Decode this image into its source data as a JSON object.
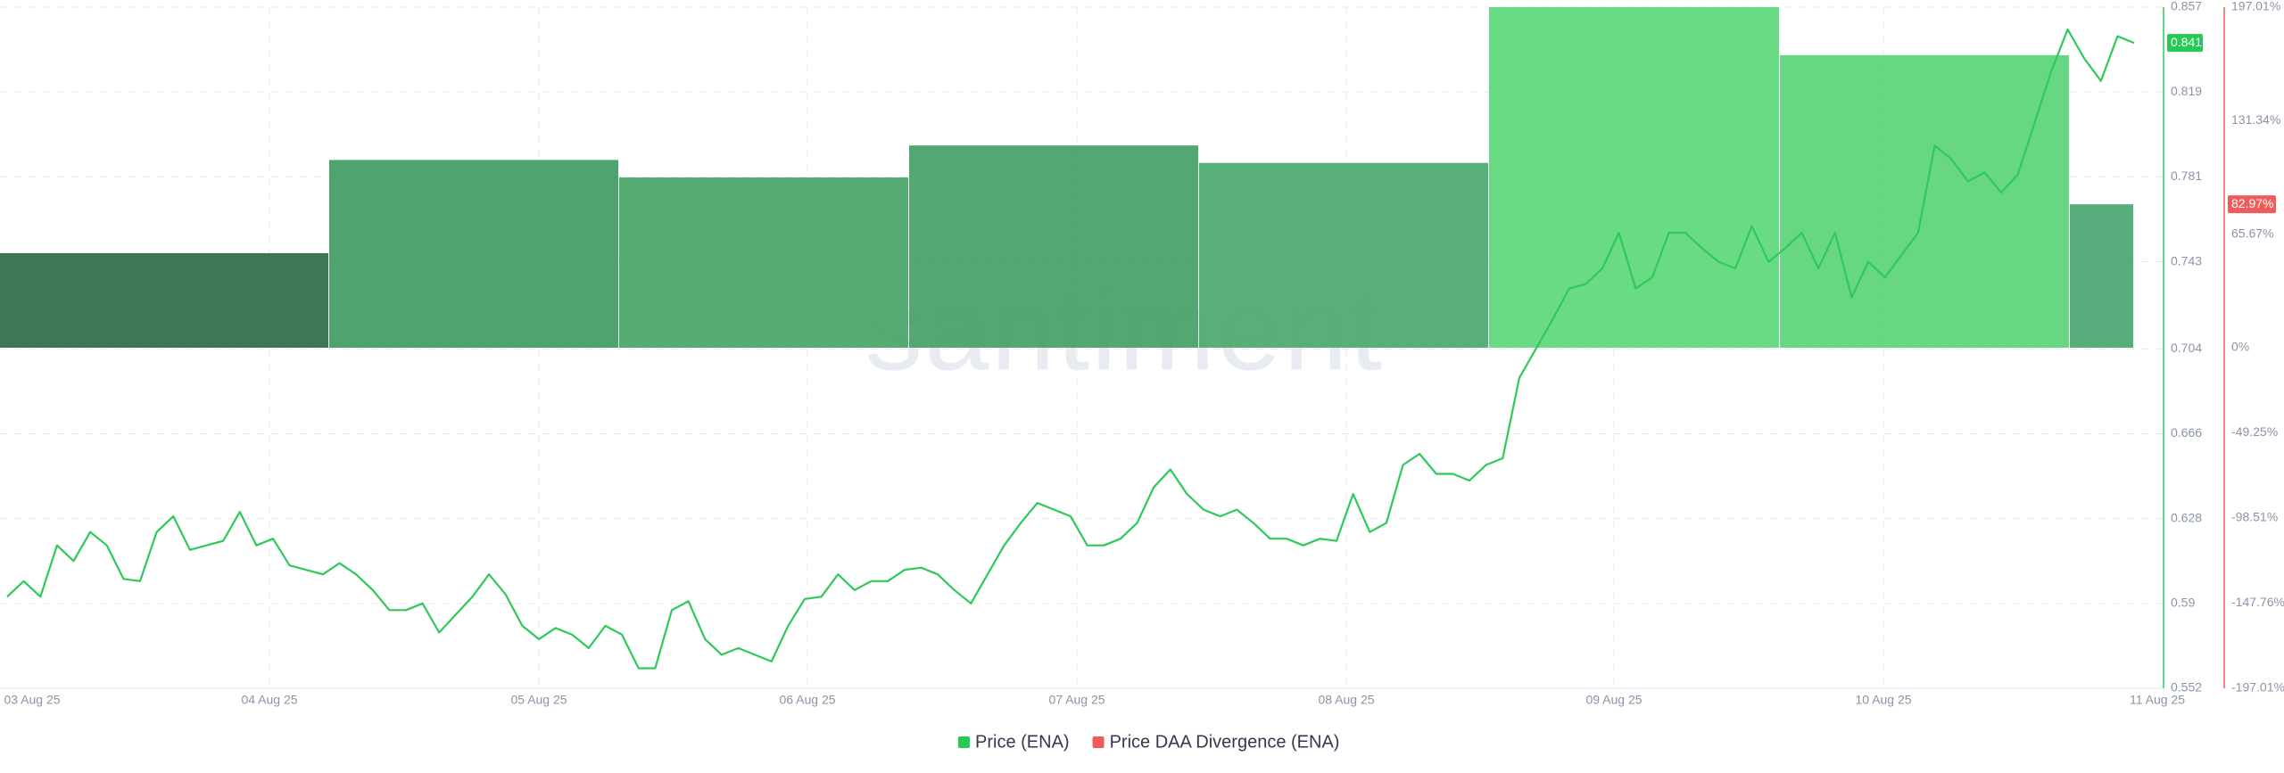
{
  "chart_data": {
    "type": "line+bar",
    "watermark": "santiment",
    "x_labels": [
      "03 Aug 25",
      "04 Aug 25",
      "05 Aug 25",
      "06 Aug 25",
      "07 Aug 25",
      "08 Aug 25",
      "09 Aug 25",
      "10 Aug 25",
      "11 Aug 25"
    ],
    "ylim": [
      0.552,
      0.857
    ],
    "yticks": [
      0.552,
      0.59,
      0.628,
      0.666,
      0.704,
      0.743,
      0.781,
      0.819,
      0.857
    ],
    "y2lim": [
      -197.01,
      197.01
    ],
    "y2ticks": [
      {
        "value": -197.01,
        "label": "-197.01%"
      },
      {
        "value": -147.76,
        "label": "-147.76%"
      },
      {
        "value": -98.51,
        "label": "-98.51%"
      },
      {
        "value": -49.25,
        "label": "-49.25%"
      },
      {
        "value": 0,
        "label": "0%"
      },
      {
        "value": 65.67,
        "label": "65.67%"
      },
      {
        "value": 131.34,
        "label": "131.34%"
      },
      {
        "value": 197.01,
        "label": "197.01%"
      }
    ],
    "grid": true,
    "series": [
      {
        "name": "Price (ENA)",
        "color": "#2fc95a",
        "legend_color": "#26c953",
        "values": [
          0.593,
          0.6,
          0.593,
          0.616,
          0.609,
          0.622,
          0.616,
          0.601,
          0.6,
          0.622,
          0.629,
          0.614,
          0.616,
          0.618,
          0.631,
          0.616,
          0.619,
          0.607,
          0.605,
          0.603,
          0.608,
          0.603,
          0.596,
          0.587,
          0.587,
          0.59,
          0.577,
          0.585,
          0.593,
          0.603,
          0.594,
          0.58,
          0.574,
          0.579,
          0.576,
          0.57,
          0.58,
          0.576,
          0.561,
          0.561,
          0.587,
          0.591,
          0.574,
          0.567,
          0.57,
          0.567,
          0.564,
          0.58,
          0.592,
          0.593,
          0.603,
          0.596,
          0.6,
          0.6,
          0.605,
          0.606,
          0.603,
          0.596,
          0.59,
          0.603,
          0.616,
          0.626,
          0.635,
          0.632,
          0.629,
          0.616,
          0.616,
          0.619,
          0.626,
          0.642,
          0.65,
          0.639,
          0.632,
          0.629,
          0.632,
          0.626,
          0.619,
          0.619,
          0.616,
          0.619,
          0.618,
          0.639,
          0.622,
          0.626,
          0.652,
          0.657,
          0.648,
          0.648,
          0.645,
          0.652,
          0.655,
          0.691,
          0.704,
          0.717,
          0.731,
          0.733,
          0.74,
          0.756,
          0.731,
          0.736,
          0.756,
          0.756,
          0.749,
          0.743,
          0.74,
          0.759,
          0.743,
          0.749,
          0.756,
          0.74,
          0.756,
          0.727,
          0.743,
          0.736,
          0.746,
          0.756,
          0.795,
          0.789,
          0.779,
          0.783,
          0.774,
          0.782,
          0.805,
          0.828,
          0.847,
          0.834,
          0.824,
          0.844,
          0.841
        ]
      },
      {
        "name": "Price DAA Divergence (ENA)",
        "color": "#f05b5b",
        "axis": "y2",
        "bar_colors": [
          "#2f6a44",
          "#3f9c63",
          "#45a566",
          "#44a064",
          "#4aa86c",
          "#5cd87b",
          "#5bd47a",
          "#4aa672"
        ],
        "values": [
          54.7,
          108.6,
          98.5,
          117.0,
          106.9,
          197.0,
          169.2,
          82.97
        ],
        "current_label": "82.97%"
      }
    ]
  }
}
